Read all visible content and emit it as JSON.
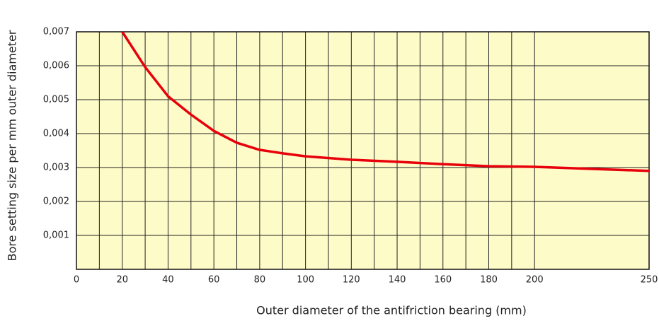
{
  "chart_data": {
    "type": "line",
    "xlabel": "Outer diameter of the antifriction bearing (mm)",
    "ylabel": "Bore setting size per mm outer diameter",
    "x": [
      20,
      30,
      40,
      50,
      60,
      70,
      80,
      90,
      100,
      120,
      140,
      160,
      180,
      200,
      250
    ],
    "series": [
      {
        "color": "#e8000b",
        "values": [
          0.007,
          0.00596,
          0.0051,
          0.00456,
          0.00408,
          0.00373,
          0.00352,
          0.00342,
          0.00333,
          0.00323,
          0.00317,
          0.0031,
          0.00304,
          0.00302,
          0.0029
        ]
      }
    ],
    "xlim": [
      0,
      250
    ],
    "ylim": [
      0,
      0.007
    ],
    "xticks": [
      0,
      20,
      40,
      60,
      80,
      100,
      120,
      140,
      160,
      180,
      200,
      250
    ],
    "xminor_ticks": [
      10,
      30,
      50,
      70,
      90,
      110,
      130,
      150,
      170,
      190
    ],
    "yticks": [
      {
        "value": 0.001,
        "label": "0,001"
      },
      {
        "value": 0.002,
        "label": "0,002"
      },
      {
        "value": 0.003,
        "label": "0,003"
      },
      {
        "value": 0.004,
        "label": "0,004"
      },
      {
        "value": 0.005,
        "label": "0,005"
      },
      {
        "value": 0.006,
        "label": "0,006"
      },
      {
        "value": 0.007,
        "label": "0,007"
      }
    ],
    "grid": true,
    "background": "#fdfbc8"
  }
}
